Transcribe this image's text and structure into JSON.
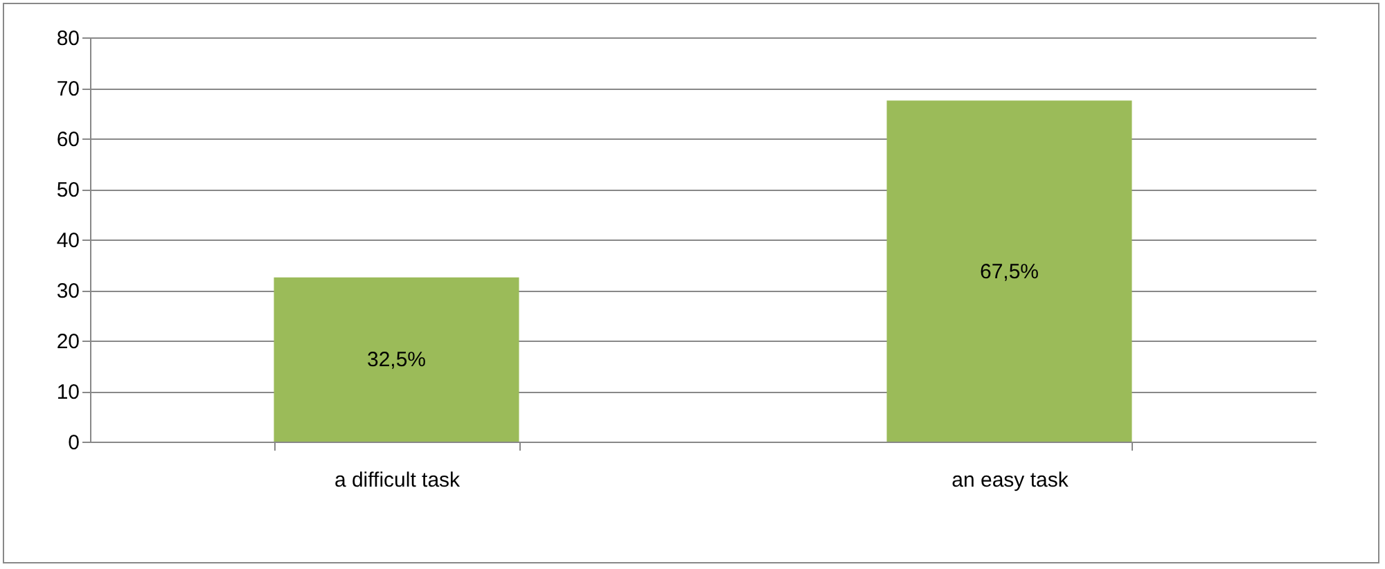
{
  "chart_data": {
    "type": "bar",
    "categories": [
      "a difficult task",
      "an easy task"
    ],
    "values": [
      32.5,
      67.5
    ],
    "value_labels": [
      "32,5%",
      "67,5%"
    ],
    "color": "#9bbb59",
    "ylim": [
      0,
      80
    ],
    "yticks": [
      0,
      10,
      20,
      30,
      40,
      50,
      60,
      70,
      80
    ],
    "grid": "y"
  }
}
